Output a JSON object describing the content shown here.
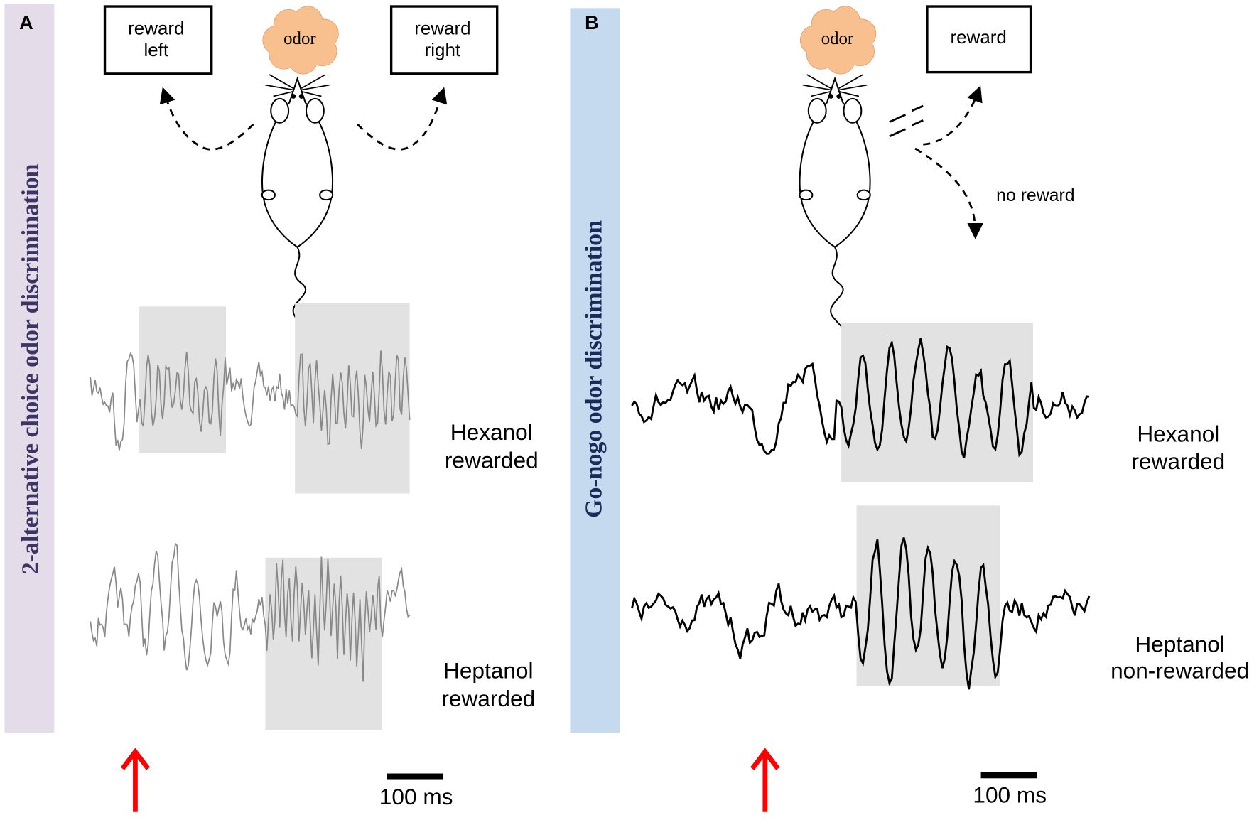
{
  "panels": [
    {
      "label": "A",
      "side_title": "2-alternative choice odor discrimination",
      "odor": "odor",
      "boxes": [
        [
          "reward",
          "left"
        ],
        [
          "reward",
          "right"
        ]
      ],
      "traces": [
        [
          "Hexanol",
          "rewarded"
        ],
        [
          "Heptanol",
          "rewarded"
        ]
      ],
      "scale": "100 ms"
    },
    {
      "label": "B",
      "side_title": "Go-nogo odor discrimination",
      "odor": "odor",
      "boxes": [
        [
          "reward"
        ]
      ],
      "no_reward": "no reward",
      "traces": [
        [
          "Hexanol",
          "rewarded"
        ],
        [
          "Heptanol",
          "non-rewarded"
        ]
      ],
      "scale": "100 ms"
    }
  ]
}
